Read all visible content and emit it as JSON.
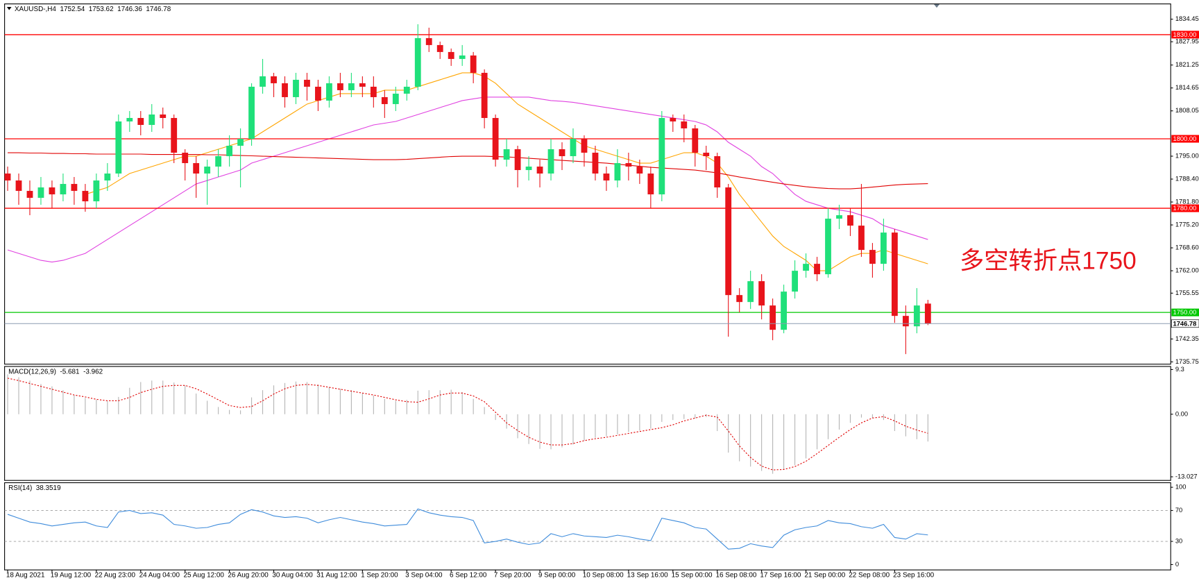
{
  "chart_data": [
    {
      "type": "candlestick",
      "title": "XAUUSD-,H4",
      "categories": [
        "18 Aug 2021",
        null,
        null,
        null,
        "19 Aug 12:00",
        null,
        null,
        null,
        "22 Aug 23:00",
        null,
        null,
        null,
        "24 Aug 04:00",
        null,
        null,
        null,
        "25 Aug 12:00",
        null,
        null,
        null,
        "26 Aug 20:00",
        null,
        null,
        null,
        "30 Aug 04:00",
        null,
        null,
        null,
        "31 Aug 12:00",
        null,
        null,
        null,
        "1 Sep 20:00",
        null,
        null,
        null,
        "3 Sep 04:00",
        null,
        null,
        null,
        "6 Sep 12:00",
        null,
        null,
        null,
        "7 Sep 20:00",
        null,
        null,
        null,
        "9 Sep 00:00",
        null,
        null,
        null,
        "10 Sep 08:00",
        null,
        null,
        null,
        "13 Sep 16:00",
        null,
        null,
        null,
        "15 Sep 00:00",
        null,
        null,
        null,
        "16 Sep 08:00",
        null,
        null,
        null,
        "17 Sep 16:00",
        null,
        null,
        null,
        "21 Sep 00:00",
        null,
        null,
        null,
        "22 Sep 08:00",
        null,
        null,
        null,
        "23 Sep 16:00",
        null,
        null,
        null
      ],
      "open": [
        1790,
        1788,
        1785,
        1783,
        1786,
        1784,
        1787,
        1785,
        1782,
        1788,
        1790,
        1805,
        1806,
        1804,
        1807,
        1806,
        1796,
        1793,
        1790,
        1792,
        1795,
        1798,
        1800,
        1815,
        1818,
        1816,
        1812,
        1817,
        1815,
        1811,
        1816,
        1814,
        1816,
        1815,
        1812,
        1810,
        1813,
        1815,
        1829,
        1827,
        1825,
        1823,
        1824,
        1819,
        1806,
        1794,
        1797,
        1791,
        1792,
        1790,
        1797,
        1795,
        1800,
        1796,
        1790,
        1788,
        1793,
        1792,
        1790,
        1784,
        1806,
        1805,
        1803,
        1796,
        1795,
        1786,
        1755,
        1753,
        1759,
        1752,
        1745,
        1756,
        1762,
        1764,
        1761,
        1777,
        1778,
        1775,
        1768,
        1764,
        1773,
        1749,
        1746,
        1752.54
      ],
      "high": [
        1792,
        1790,
        1788,
        1789,
        1788,
        1790,
        1789,
        1787,
        1790,
        1793,
        1807,
        1808,
        1808,
        1810,
        1809,
        1807,
        1797,
        1795,
        1794,
        1797,
        1801,
        1803,
        1816,
        1823,
        1819,
        1818,
        1819,
        1819,
        1817,
        1818,
        1819,
        1819,
        1818,
        1818,
        1814,
        1815,
        1817,
        1833,
        1832,
        1828,
        1826,
        1827,
        1825,
        1820,
        1807,
        1800,
        1798,
        1795,
        1794,
        1800,
        1799,
        1803,
        1801,
        1798,
        1792,
        1797,
        1796,
        1794,
        1792,
        1808,
        1807,
        1807,
        1804,
        1798,
        1796,
        1787,
        1757,
        1762,
        1761,
        1754,
        1758,
        1765,
        1767,
        1766,
        1780,
        1781,
        1780,
        1787,
        1770,
        1777,
        1774,
        1752,
        1757,
        1753.62
      ],
      "low": [
        1785,
        1781,
        1778,
        1781,
        1780,
        1782,
        1781,
        1779,
        1780,
        1785,
        1789,
        1802,
        1801,
        1802,
        1803,
        1793,
        1788,
        1783,
        1781,
        1789,
        1792,
        1786,
        1798,
        1813,
        1812,
        1809,
        1810,
        1811,
        1808,
        1809,
        1812,
        1812,
        1812,
        1809,
        1806,
        1808,
        1811,
        1814,
        1825,
        1823,
        1821,
        1821,
        1816,
        1803,
        1792,
        1792,
        1786,
        1788,
        1786,
        1788,
        1791,
        1793,
        1792,
        1788,
        1785,
        1786,
        1788,
        1787,
        1780,
        1782,
        1802,
        1799,
        1792,
        1791,
        1783,
        1743,
        1750,
        1751,
        1748,
        1742,
        1744,
        1754,
        1760,
        1759,
        1760,
        1774,
        1772,
        1766,
        1760,
        1762,
        1747,
        1738,
        1744,
        1746.36
      ],
      "close": [
        1788,
        1785,
        1783,
        1786,
        1784,
        1787,
        1785,
        1782,
        1788,
        1790,
        1805,
        1806,
        1804,
        1807,
        1806,
        1796,
        1793,
        1790,
        1792,
        1795,
        1798,
        1800,
        1815,
        1818,
        1816,
        1812,
        1817,
        1815,
        1811,
        1816,
        1814,
        1816,
        1815,
        1812,
        1810,
        1813,
        1815,
        1829,
        1827,
        1825,
        1823,
        1824,
        1819,
        1806,
        1794,
        1797,
        1791,
        1792,
        1790,
        1797,
        1795,
        1800,
        1796,
        1790,
        1788,
        1793,
        1792,
        1790,
        1784,
        1806,
        1805,
        1803,
        1796,
        1795,
        1786,
        1755,
        1753,
        1759,
        1752,
        1745,
        1756,
        1762,
        1764,
        1761,
        1777,
        1778,
        1775,
        1768,
        1764,
        1773,
        1749,
        1746,
        1752,
        1746.78
      ],
      "up_color": "#1fe07a",
      "down_color": "#e8141b",
      "series": [
        {
          "color": "#ffa500",
          "values": [
            null,
            null,
            null,
            null,
            null,
            null,
            null,
            1784,
            1785,
            1786,
            1788,
            1790,
            1791,
            1792,
            1793,
            1794,
            1795,
            1795,
            1796,
            1797,
            1798,
            1799,
            1800,
            1802,
            1804,
            1806,
            1808,
            1810,
            1811,
            1812,
            1813,
            1813,
            1813,
            1813,
            1814,
            1814,
            1814,
            1815,
            1816,
            1817,
            1818,
            1819,
            1819,
            1818,
            1816,
            1813,
            1810,
            1808,
            1806,
            1804,
            1802,
            1800,
            1798,
            1797,
            1796,
            1795,
            1794,
            1793,
            1793,
            1794,
            1795,
            1796,
            1796,
            1795,
            1793,
            1789,
            1784,
            1780,
            1776,
            1772,
            1769,
            1767,
            1765,
            1762,
            1762,
            1764,
            1766,
            1767,
            1767,
            1768,
            1767,
            1766,
            1765,
            1764
          ]
        },
        {
          "color": "#e040e0",
          "values": [
            1768,
            1767,
            1766,
            1765,
            1764.5,
            1765,
            1766,
            1767,
            1769,
            1771,
            1773,
            1775,
            1777,
            1779,
            1781,
            1783,
            1785,
            1787,
            1788,
            1789,
            1790,
            1791,
            1793,
            1794,
            1795,
            1796,
            1797,
            1798,
            1799,
            1800,
            1801,
            1802,
            1803,
            1804,
            1804.5,
            1805,
            1806,
            1807,
            1808,
            1809,
            1810,
            1811,
            1811.5,
            1812,
            1812,
            1812,
            1812,
            1812,
            1811.5,
            1811,
            1810.8,
            1810.5,
            1810,
            1809.5,
            1809,
            1808.5,
            1808,
            1807.5,
            1807,
            1806.5,
            1806,
            1805.5,
            1805,
            1804,
            1802,
            1799,
            1797,
            1795,
            1792,
            1790,
            1787,
            1784,
            1782,
            1781,
            1780,
            1779.5,
            1779,
            1778,
            1777,
            1775,
            1774,
            1773,
            1772,
            1771
          ]
        },
        {
          "color": "#e00000",
          "values": [
            1796,
            1796,
            1795.9,
            1795.9,
            1795.8,
            1795.8,
            1795.7,
            1795.7,
            1795.6,
            1795.6,
            1795.6,
            1795.6,
            1795.6,
            1795.5,
            1795.5,
            1795.5,
            1795.5,
            1795.5,
            1795.4,
            1795.4,
            1795.3,
            1795.2,
            1795.1,
            1795,
            1794.9,
            1794.8,
            1794.7,
            1794.6,
            1794.5,
            1794.4,
            1794.3,
            1794.2,
            1794.1,
            1794,
            1794,
            1794,
            1794.1,
            1794.3,
            1794.5,
            1794.7,
            1794.9,
            1795,
            1795,
            1795,
            1794.9,
            1794.8,
            1794.6,
            1794.4,
            1794.2,
            1794,
            1793.8,
            1793.6,
            1793.4,
            1793.2,
            1793,
            1792.7,
            1792.4,
            1792.1,
            1791.8,
            1791.6,
            1791.4,
            1791.2,
            1791,
            1790.6,
            1790.2,
            1789.6,
            1789,
            1788.5,
            1788,
            1787.5,
            1787,
            1786.6,
            1786.2,
            1785.9,
            1785.7,
            1785.6,
            1785.6,
            1785.8,
            1786.1,
            1786.4,
            1786.7,
            1786.9,
            1787,
            1787.1
          ]
        }
      ],
      "levels": [
        {
          "value": 1830,
          "label": "1830.00",
          "color": "#ff0000"
        },
        {
          "value": 1800,
          "label": "1800.00",
          "color": "#ff0000"
        },
        {
          "value": 1780,
          "label": "1780.00",
          "color": "#ff0000"
        },
        {
          "value": 1750,
          "label": "1750.00",
          "color": "#00c800"
        }
      ],
      "price_line_color": "#8a9bb0",
      "annotation": "多空转折点1750",
      "annotation_color": "#e8141b",
      "ylim": [
        1735.1,
        1838.85
      ],
      "yticks": [
        1834.45,
        1827.95,
        1821.25,
        1814.65,
        1808.05,
        {
          "value": 1795,
          "label": "1795.00"
        },
        {
          "value": 1788.4,
          "label": "1788.40"
        },
        {
          "value": 1781.8,
          "label": "1781.80"
        },
        {
          "value": 1775.2,
          "label": "1775.20"
        },
        {
          "value": 1768.6,
          "label": "1768.60"
        },
        {
          "value": 1762,
          "label": "1762.00"
        },
        1755.55,
        1742.35,
        1735.75
      ]
    },
    {
      "type": "macd",
      "title": "MACD(12,26,9)",
      "series": [
        {
          "style": "histogram",
          "color": "#b4b4b4",
          "values": [
            8.3,
            7.7,
            7.0,
            6.3,
            5.8,
            5.0,
            4.0,
            3.4,
            3.0,
            2.7,
            3.6,
            5.5,
            6.7,
            7.0,
            7.0,
            6.6,
            6.0,
            4.3,
            2.8,
            1.5,
            0.9,
            0.8,
            3.5,
            5.0,
            6.0,
            6.5,
            6.8,
            6.7,
            6.2,
            5.6,
            5.3,
            5.0,
            4.4,
            3.9,
            3.2,
            2.8,
            3.0,
            4.9,
            5.0,
            5.0,
            5.1,
            4.6,
            3.2,
            1.5,
            -1.2,
            -3.0,
            -5.0,
            -6.2,
            -7.2,
            -7.3,
            -6.9,
            -6.3,
            -5.5,
            -4.9,
            -4.6,
            -4.2,
            -3.7,
            -3.4,
            -3.0,
            -1.6,
            -1.2,
            -1.0,
            -0.9,
            -0.6,
            -3.5,
            -8.0,
            -9.8,
            -10.9,
            -11.8,
            -12.4,
            -11.6,
            -10.6,
            -9.2,
            -7.3,
            -5.2,
            -3.2,
            -1.8,
            -0.7,
            -0.8,
            -1.2,
            -3.5,
            -4.6,
            -5.2,
            -5.681
          ]
        },
        {
          "style": "dotted",
          "color": "#e00000",
          "values": [
            7.5,
            7.0,
            6.4,
            5.8,
            5.2,
            4.6,
            4.0,
            3.6,
            3.1,
            2.8,
            2.8,
            3.5,
            4.5,
            5.2,
            5.8,
            6.0,
            6.0,
            5.3,
            4.2,
            3.0,
            1.8,
            1.4,
            1.6,
            2.8,
            4.2,
            5.3,
            6.0,
            6.2,
            6.0,
            5.6,
            5.2,
            4.8,
            4.4,
            4.0,
            3.5,
            3.0,
            2.6,
            2.5,
            3.2,
            4.0,
            4.4,
            4.4,
            3.8,
            2.6,
            0.4,
            -1.8,
            -3.4,
            -4.8,
            -5.8,
            -6.4,
            -6.4,
            -6.1,
            -5.5,
            -5.1,
            -4.8,
            -4.4,
            -4.0,
            -3.6,
            -3.2,
            -2.8,
            -2.2,
            -1.4,
            -0.8,
            -0.2,
            -0.6,
            -3.5,
            -6.6,
            -9.0,
            -10.8,
            -11.6,
            -11.5,
            -10.9,
            -9.8,
            -8.2,
            -6.5,
            -4.8,
            -3.2,
            -1.8,
            -0.8,
            -0.5,
            -1.4,
            -2.5,
            -3.3,
            -3.962
          ]
        }
      ],
      "ylim": [
        -13.78,
        9.94
      ],
      "yticks": [
        9.3,
        {
          "value": 0,
          "label": "0.00"
        },
        -13.027
      ]
    },
    {
      "type": "rsi",
      "title": "RSI(14)",
      "series": [
        {
          "color": "#3d8bdb",
          "values": [
            65,
            60,
            55,
            53,
            50,
            52,
            54,
            55,
            50,
            48,
            68,
            70,
            66,
            67,
            64,
            52,
            50,
            47,
            48,
            52,
            54,
            65,
            71,
            68,
            63,
            61,
            62,
            60,
            54,
            58,
            61,
            58,
            55,
            53,
            50,
            51,
            52,
            72,
            67,
            64,
            62,
            61,
            57,
            28,
            30,
            33,
            29,
            26,
            28,
            40,
            36,
            40,
            37,
            36,
            35,
            38,
            36,
            33,
            31,
            60,
            57,
            54,
            48,
            46,
            33,
            20,
            21,
            27,
            24,
            22,
            38,
            45,
            48,
            50,
            57,
            54,
            53,
            49,
            47,
            52,
            35,
            33,
            40,
            38.3519
          ]
        }
      ],
      "levels": [
        70,
        30
      ],
      "ylim": [
        -6.9,
        105.9
      ],
      "yticks": [
        100,
        70,
        30,
        0
      ]
    }
  ]
}
